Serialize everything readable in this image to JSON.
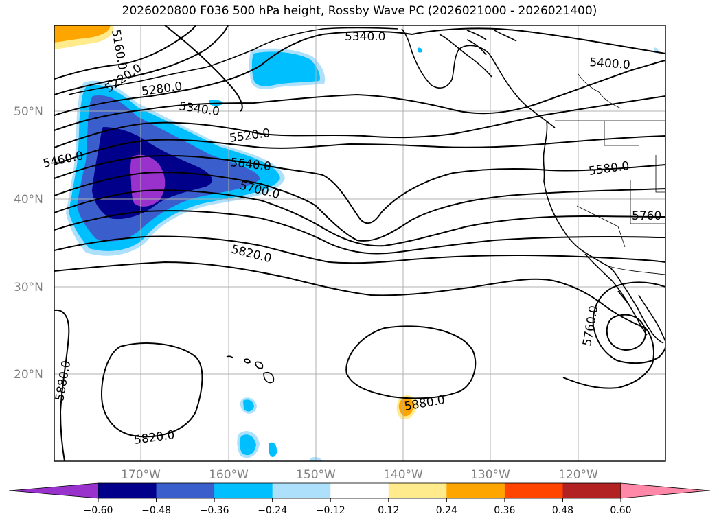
{
  "title": "2026020800 F036 500 hPa height, Rossby Wave PC (2026021000 - 2026021400)",
  "map": {
    "lat_labels": [
      "50°N",
      "40°N",
      "30°N",
      "20°N"
    ],
    "lon_labels": [
      "170°W",
      "160°W",
      "150°W",
      "140°W",
      "130°W",
      "120°W"
    ],
    "contour_labels": [
      "5160.0",
      "5220.0",
      "5280.0",
      "5340.0",
      "5340.0",
      "5400.0",
      "5460.0",
      "5520.0",
      "5580.0",
      "5640.0",
      "5700.0",
      "5760",
      "5760.0",
      "5820.0",
      "5820.0",
      "5880.0",
      "5880.0"
    ]
  },
  "colorbar": {
    "ticks": [
      "−0.60",
      "−0.48",
      "−0.36",
      "−0.24",
      "−0.12",
      "0.12",
      "0.24",
      "0.36",
      "0.48",
      "0.60"
    ],
    "colors": [
      "#9932CC",
      "#00008B",
      "#3A5FCD",
      "#00BFFF",
      "#ADE0FA",
      "#FFFFFF",
      "#FFEB8C",
      "#FFA500",
      "#FF4500",
      "#B22222",
      "#FF88A8"
    ]
  }
}
